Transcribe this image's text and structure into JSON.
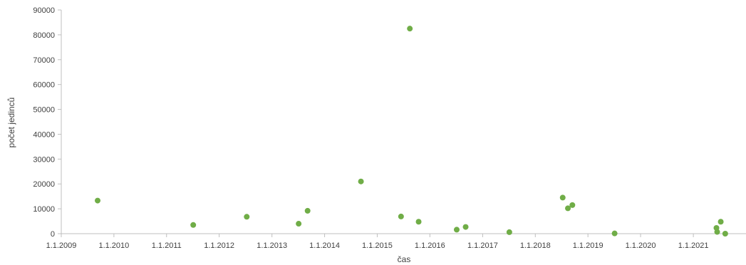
{
  "chart_data": {
    "type": "scatter",
    "xlabel": "čas",
    "ylabel": "počet jedinců",
    "x_tick_labels": [
      "1.1.2009",
      "1.1.2010",
      "1.1.2011",
      "1.1.2012",
      "1.1.2013",
      "1.1.2014",
      "1.1.2015",
      "1.1.2016",
      "1.1.2017",
      "1.1.2018",
      "1.1.2019",
      "1.1.2020",
      "1.1.2021"
    ],
    "y_tick_labels": [
      "0",
      "10000",
      "20000",
      "30000",
      "40000",
      "50000",
      "60000",
      "70000",
      "80000",
      "90000"
    ],
    "xlim": [
      "2009-01-01",
      "2022-01-01"
    ],
    "ylim": [
      0,
      90000
    ],
    "grid": false,
    "marker_color": "#70ad47",
    "points": [
      {
        "x": "2009-09-10",
        "y": 13300
      },
      {
        "x": "2011-07-05",
        "y": 3500
      },
      {
        "x": "2012-07-10",
        "y": 6800
      },
      {
        "x": "2013-07-05",
        "y": 4000
      },
      {
        "x": "2013-09-05",
        "y": 9200
      },
      {
        "x": "2014-09-10",
        "y": 21000
      },
      {
        "x": "2015-06-15",
        "y": 6900
      },
      {
        "x": "2015-08-15",
        "y": 82500
      },
      {
        "x": "2015-10-15",
        "y": 4800
      },
      {
        "x": "2016-07-05",
        "y": 1600
      },
      {
        "x": "2016-09-05",
        "y": 2700
      },
      {
        "x": "2017-07-05",
        "y": 600
      },
      {
        "x": "2018-07-10",
        "y": 14500
      },
      {
        "x": "2018-08-15",
        "y": 10200
      },
      {
        "x": "2018-09-15",
        "y": 11500
      },
      {
        "x": "2019-07-05",
        "y": 100
      },
      {
        "x": "2021-06-10",
        "y": 2300
      },
      {
        "x": "2021-06-15",
        "y": 700
      },
      {
        "x": "2021-07-10",
        "y": 4800
      },
      {
        "x": "2021-08-10",
        "y": 0
      }
    ]
  }
}
